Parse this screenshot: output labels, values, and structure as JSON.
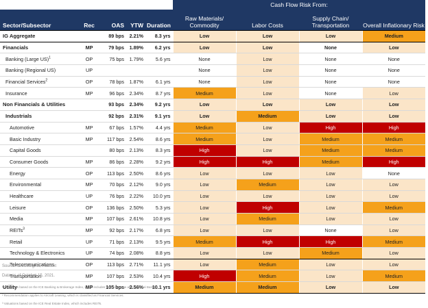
{
  "header": {
    "group_title": "Cash Flow Risk From:",
    "col_sector": "Sector/Subsector",
    "col_rec": "Rec",
    "col_oas": "OAS",
    "col_ytw": "YTW",
    "col_duration": "Duration",
    "risk_cols": [
      "Raw Materials/ Commodity",
      "Labor Costs",
      "Supply Chain/ Transportation",
      "Overall Inflationary Risk"
    ]
  },
  "colors": {
    "header_bg": "#1f3864",
    "None": "#ffffff",
    "Low": "#fbe5c8",
    "Medium": "#f5a11b",
    "High": "#c00000",
    "row_border": "#d9d9d9"
  },
  "rows": [
    {
      "name": "IG Aggregate",
      "sup": "",
      "rec": "",
      "oas": "89 bps",
      "ytw": "2.21%",
      "dur": "8.3 yrs",
      "risks": [
        "Low",
        "Low",
        "Low",
        "Medium"
      ],
      "level": 0,
      "bold": true,
      "boxed": true
    },
    {
      "name": "Financials",
      "sup": "",
      "rec": "MP",
      "oas": "79 bps",
      "ytw": "1.89%",
      "dur": "6.2 yrs",
      "risks": [
        "Low",
        "Low",
        "None",
        "Low"
      ],
      "level": 0,
      "bold": true,
      "boxed": false
    },
    {
      "name": "Banking (Large US)",
      "sup": "1",
      "rec": "OP",
      "oas": "75 bps",
      "ytw": "1.79%",
      "dur": "5.6 yrs",
      "risks": [
        "None",
        "Low",
        "None",
        "None"
      ],
      "level": 1,
      "bold": false,
      "boxed": false
    },
    {
      "name": "Banking (Regional US)",
      "sup": "",
      "rec": "UP",
      "oas": "",
      "ytw": "",
      "dur": "",
      "risks": [
        "None",
        "Low",
        "None",
        "None"
      ],
      "level": 1,
      "bold": false,
      "boxed": false
    },
    {
      "name": "Financial Services",
      "sup": "2",
      "rec": "OP",
      "oas": "78 bps",
      "ytw": "1.87%",
      "dur": "6.1 yrs",
      "risks": [
        "None",
        "Low",
        "None",
        "None"
      ],
      "level": 1,
      "bold": false,
      "boxed": false
    },
    {
      "name": "Insurance",
      "sup": "",
      "rec": "MP",
      "oas": "96 bps",
      "ytw": "2.34%",
      "dur": "8.7 yrs",
      "risks": [
        "Medium",
        "Low",
        "None",
        "Low"
      ],
      "level": 1,
      "bold": false,
      "boxed": false
    },
    {
      "name": "Non Financials & Utilities",
      "sup": "",
      "rec": "",
      "oas": "93 bps",
      "ytw": "2.34%",
      "dur": "9.2 yrs",
      "risks": [
        "Low",
        "Low",
        "Low",
        "Low"
      ],
      "level": 0,
      "bold": true,
      "boxed": false
    },
    {
      "name": "Industrials",
      "sup": "",
      "rec": "",
      "oas": "92 bps",
      "ytw": "2.31%",
      "dur": "9.1 yrs",
      "risks": [
        "Low",
        "Medium",
        "Low",
        "Low"
      ],
      "level": 1,
      "bold": true,
      "boxed": false
    },
    {
      "name": "Automotive",
      "sup": "",
      "rec": "MP",
      "oas": "67 bps",
      "ytw": "1.57%",
      "dur": "4.4 yrs",
      "risks": [
        "Medium",
        "Low",
        "High",
        "High"
      ],
      "level": 2,
      "bold": false,
      "boxed": false
    },
    {
      "name": "Basic Industry",
      "sup": "",
      "rec": "MP",
      "oas": "117 bps",
      "ytw": "2.54%",
      "dur": "8.6 yrs",
      "risks": [
        "Medium",
        "Low",
        "Medium",
        "Medium"
      ],
      "level": 2,
      "bold": false,
      "boxed": false
    },
    {
      "name": "Capital Goods",
      "sup": "",
      "rec": "",
      "oas": "80 bps",
      "ytw": "2.13%",
      "dur": "8.3 yrs",
      "risks": [
        "High",
        "Low",
        "Medium",
        "Medium"
      ],
      "level": 2,
      "bold": false,
      "boxed": false
    },
    {
      "name": "Consumer Goods",
      "sup": "",
      "rec": "MP",
      "oas": "86 bps",
      "ytw": "2.28%",
      "dur": "9.2 yrs",
      "risks": [
        "High",
        "High",
        "Medium",
        "High"
      ],
      "level": 2,
      "bold": false,
      "boxed": false
    },
    {
      "name": "Energy",
      "sup": "",
      "rec": "OP",
      "oas": "113 bps",
      "ytw": "2.50%",
      "dur": "8.6 yrs",
      "risks": [
        "Low",
        "Low",
        "Low",
        "None"
      ],
      "level": 2,
      "bold": false,
      "boxed": false
    },
    {
      "name": "Environmental",
      "sup": "",
      "rec": "MP",
      "oas": "70 bps",
      "ytw": "2.12%",
      "dur": "9.0 yrs",
      "risks": [
        "Low",
        "Medium",
        "Low",
        "Low"
      ],
      "level": 2,
      "bold": false,
      "boxed": false
    },
    {
      "name": "Healthcare",
      "sup": "",
      "rec": "UP",
      "oas": "76 bps",
      "ytw": "2.22%",
      "dur": "10.0 yrs",
      "risks": [
        "Low",
        "Low",
        "Low",
        "Low"
      ],
      "level": 2,
      "bold": false,
      "boxed": false
    },
    {
      "name": "Leisure",
      "sup": "",
      "rec": "OP",
      "oas": "136 bps",
      "ytw": "2.50%",
      "dur": "5.3 yrs",
      "risks": [
        "Low",
        "High",
        "Low",
        "Medium"
      ],
      "level": 2,
      "bold": false,
      "boxed": false
    },
    {
      "name": "Media",
      "sup": "",
      "rec": "MP",
      "oas": "107 bps",
      "ytw": "2.61%",
      "dur": "10.8 yrs",
      "risks": [
        "Low",
        "Medium",
        "Low",
        "Low"
      ],
      "level": 2,
      "bold": false,
      "boxed": false
    },
    {
      "name": "REITs",
      "sup": "3",
      "rec": "MP",
      "oas": "92 bps",
      "ytw": "2.17%",
      "dur": "6.8 yrs",
      "risks": [
        "Low",
        "Low",
        "None",
        "Low"
      ],
      "level": 2,
      "bold": false,
      "boxed": false
    },
    {
      "name": "Retail",
      "sup": "",
      "rec": "UP",
      "oas": "71 bps",
      "ytw": "2.13%",
      "dur": "9.5 yrs",
      "risks": [
        "Medium",
        "High",
        "High",
        "Medium"
      ],
      "level": 2,
      "bold": false,
      "boxed": false
    },
    {
      "name": "Technology & Electronics",
      "sup": "",
      "rec": "UP",
      "oas": "74 bps",
      "ytw": "2.08%",
      "dur": "8.8 yrs",
      "risks": [
        "Low",
        "Low",
        "Medium",
        "Low"
      ],
      "level": 2,
      "bold": false,
      "boxed": true
    },
    {
      "name": "Telecommunications",
      "sup": "",
      "rec": "OP",
      "oas": "113 bps",
      "ytw": "2.71%",
      "dur": "11.1 yrs",
      "risks": [
        "Low",
        "Medium",
        "Low",
        "Low"
      ],
      "level": 2,
      "bold": false,
      "boxed": false
    },
    {
      "name": "Transportation",
      "sup": "",
      "rec": "MP",
      "oas": "107 bps",
      "ytw": "2.53%",
      "dur": "10.4 yrs",
      "risks": [
        "High",
        "Medium",
        "Low",
        "Medium"
      ],
      "level": 2,
      "bold": false,
      "boxed": false
    },
    {
      "name": "Utility",
      "sup": "",
      "rec": "MP",
      "oas": "105 bps",
      "ytw": "2.56%",
      "dur": "10.1 yrs",
      "risks": [
        "Medium",
        "Medium",
        "Low",
        "Low"
      ],
      "level": 0,
      "bold": true,
      "boxed": true
    }
  ],
  "footer": {
    "source": "Source: CreditSights, FactSet",
    "date": "Data as of October 15, 2021.",
    "notes": [
      "¹ Valuations based on the ICE Banking & Brokerage Index, which includes both US Large and Regional Banks.",
      "² Recommendation applies to Aircraft Leasing, which is classified as Financial Services.",
      "³ Valuations based on the ICE Real Estate Index, which includes REITs."
    ]
  }
}
